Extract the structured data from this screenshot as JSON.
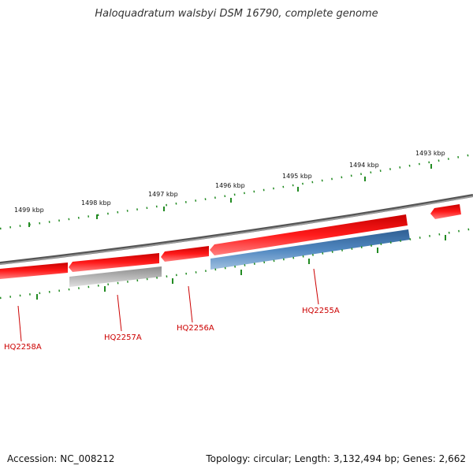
{
  "title": "Haloquadratum walsbyi DSM 16790, complete genome",
  "footer": {
    "accession": "Accession: NC_008212",
    "topology": "Topology: circular; Length: 3,132,494 bp; Genes: 2,662"
  },
  "ruler_labels": [
    "1493 kbp",
    "1494 kbp",
    "1495 kbp",
    "1496 kbp",
    "1497 kbp",
    "1498 kbp",
    "1499 kbp"
  ],
  "gene_labels": [
    "HQ2255A",
    "HQ2256A",
    "HQ2257A",
    "HQ2258A"
  ],
  "colors": {
    "backbone": "#808080",
    "forward_gene": "#ee1111",
    "reverse_gene": "#ee1111",
    "cds": "#4a7fb5",
    "pseudo": "#aaaaaa",
    "ticks": "#228b22",
    "gene_label": "#cc0000"
  }
}
